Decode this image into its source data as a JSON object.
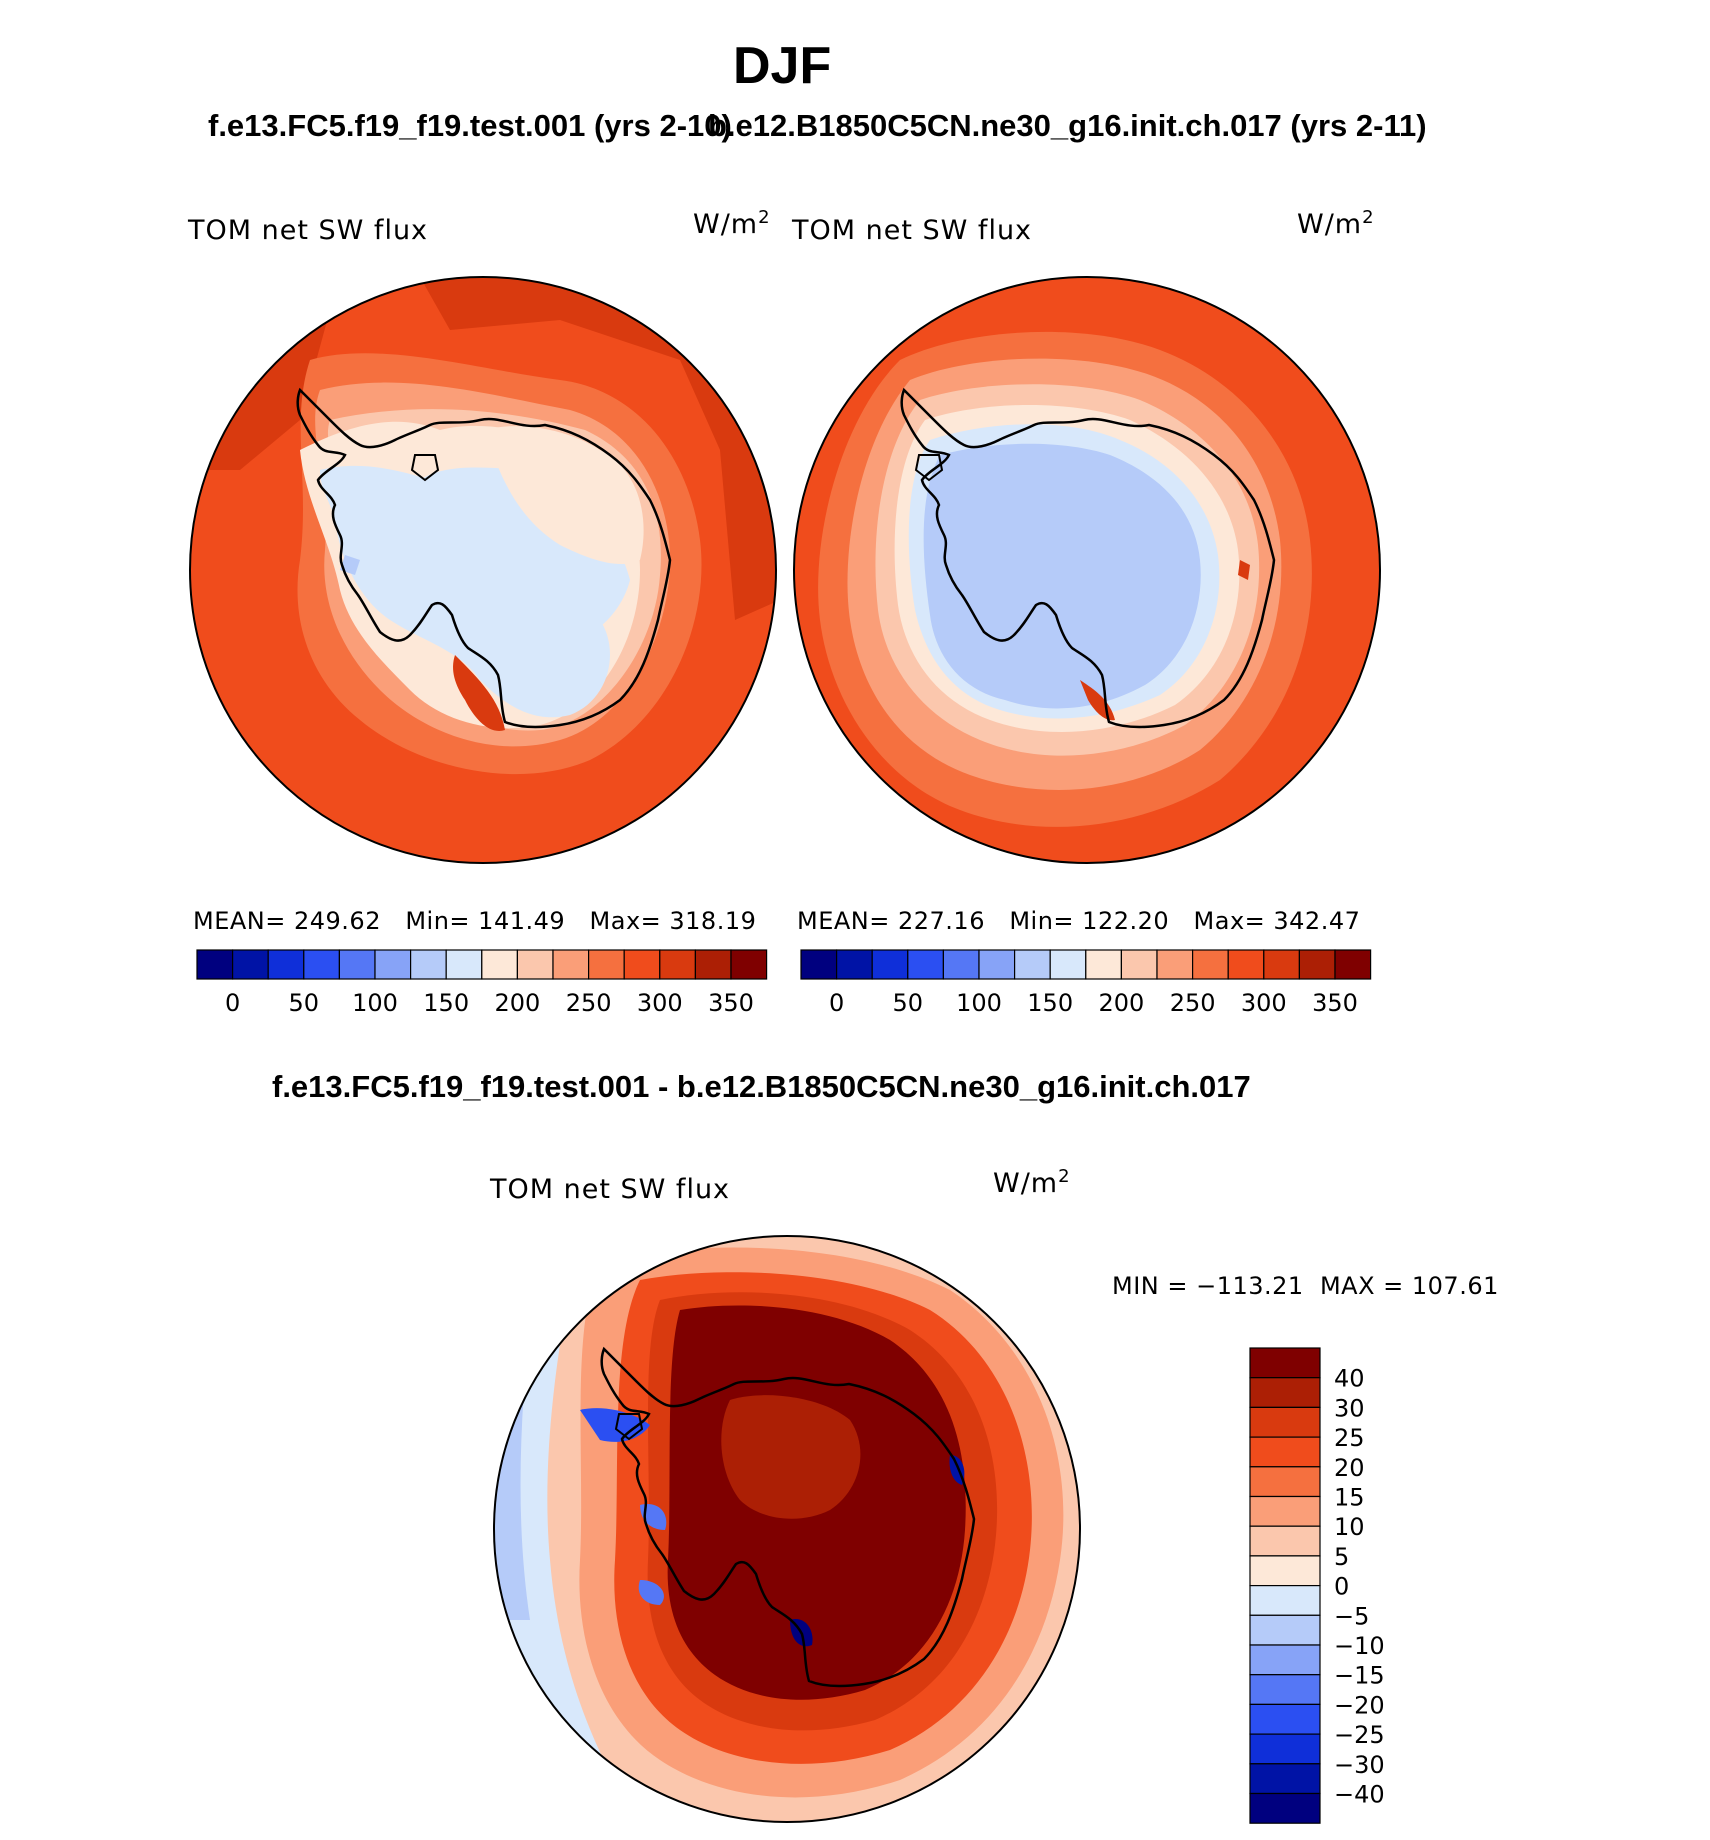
{
  "title": "DJF",
  "subtitle_left": "f.e13.FC5.f19_f19.test.001 (yrs 2-10)",
  "subtitle_right": "b.e12.B1850C5CN.ne30_g16.init.ch.017 (yrs 2-11)",
  "diff_title": "f.e13.FC5.f19_f19.test.001 - b.e12.B1850C5CN.ne30_g16.init.ch.017",
  "units": {
    "base": "W/m",
    "exp": "2"
  },
  "panels": [
    {
      "label": "TOM net SW flux",
      "stats": "MEAN= 249.62   Min= 141.49   Max= 318.19"
    },
    {
      "label": "TOM net SW flux",
      "stats": "MEAN= 227.16   Min= 122.20   Max= 342.47"
    }
  ],
  "diff_panel": {
    "label": "TOM net SW flux",
    "stats": "MIN = −113.21  MAX = 107.61"
  },
  "colorbar_top": {
    "colors": [
      "#00007f",
      "#0013a6",
      "#0f2fd9",
      "#2b4ff2",
      "#5577f5",
      "#87a3f7",
      "#b5cbf9",
      "#d8e8fb",
      "#fde8d8",
      "#fbc7ad",
      "#fa9e78",
      "#f5703f",
      "#f04c1c",
      "#d93a0f",
      "#ac1f05",
      "#7f0000"
    ],
    "ticks": [
      "0",
      "50",
      "100",
      "150",
      "200",
      "250",
      "300",
      "350"
    ]
  },
  "colorbar_diff": {
    "colors": [
      "#00007f",
      "#0013a6",
      "#0f2fd9",
      "#2b4ff2",
      "#5577f5",
      "#87a3f7",
      "#b5cbf9",
      "#d8e8fb",
      "#fde8d8",
      "#fbc7ad",
      "#fa9e78",
      "#f5703f",
      "#f04c1c",
      "#d93a0f",
      "#ac1f05",
      "#7f0000"
    ],
    "ticks": [
      "40",
      "30",
      "25",
      "20",
      "15",
      "10",
      "5",
      "0",
      "−5",
      "−10",
      "−15",
      "−20",
      "−25",
      "−30",
      "−40"
    ]
  }
}
